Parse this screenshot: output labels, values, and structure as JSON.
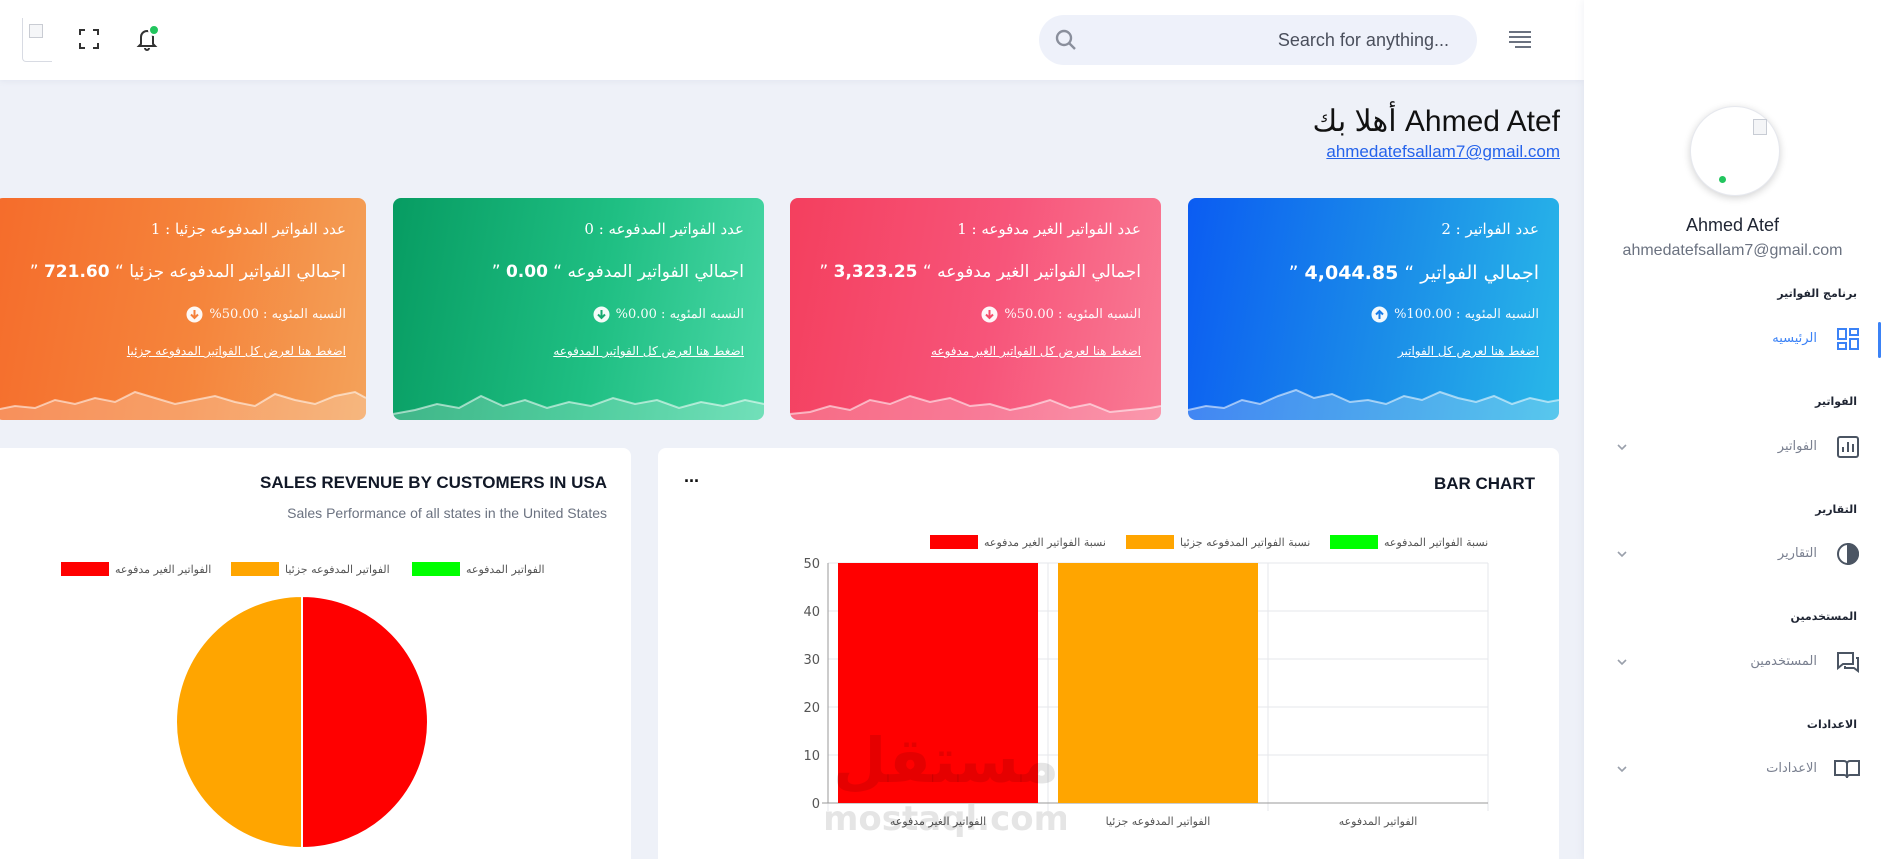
{
  "header": {
    "search_placeholder": "Search for anything..."
  },
  "sidebar": {
    "user_name": "Ahmed Atef",
    "user_email": "ahmedatefsallam7@gmail.com",
    "sections": [
      {
        "title": "برنامج الفواتير",
        "item": "الرئيسيه",
        "icon": "dashboard-icon",
        "active": true
      },
      {
        "title": "الفواتير",
        "item": "الفواتير",
        "icon": "bar-chart-icon",
        "active": false
      },
      {
        "title": "التقارير",
        "item": "التقارير",
        "icon": "pie-chart-icon",
        "active": false
      },
      {
        "title": "المستخدمين",
        "item": "المستخدمين",
        "icon": "chat-icon",
        "active": false
      },
      {
        "title": "الاعدادات",
        "item": "الاعدادات",
        "icon": "book-icon",
        "active": false
      }
    ]
  },
  "welcome": {
    "greeting": "أهلا بك Ahmed Atef",
    "email": "ahmedatefsallam7@gmail.com"
  },
  "cards": [
    {
      "color": "blue",
      "title": "عدد الفواتير : 2",
      "total_label": "اجمالي الفواتير",
      "total_value": "4,044.85",
      "percent": "النسبه المئويه : 100.00%",
      "trend": "up",
      "link": "اضغط هنا لعرض كل الفواتير"
    },
    {
      "color": "red",
      "title": "عدد الفواتير الغير مدفوعه : 1",
      "total_label": "اجمالي الفواتير الغير مدفوعه",
      "total_value": "3,323.25",
      "percent": "النسبه المئويه : 50.00%",
      "trend": "down",
      "link": "اضغط هنا لعرض كل الفواتير الغير مدفوعه"
    },
    {
      "color": "green",
      "title": "عدد الفواتير المدفوعه : 0",
      "total_label": "اجمالي الفواتير المدفوعه",
      "total_value": "0.00",
      "percent": "النسبه المئويه : 0.00%",
      "trend": "down",
      "link": "اضغط هنا لعرض كل الفواتير المدفوعه"
    },
    {
      "color": "orange",
      "title": "عدد الفواتير المدفوعه جزئيا : 1",
      "total_label": "اجمالي الفواتير المدفوعه جزئيا",
      "total_value": "721.60",
      "percent": "النسبه المئويه : 50.00%",
      "trend": "down",
      "link": "اضغط هنا لعرض كل الفواتير المدفوعه جزئيا"
    }
  ],
  "pie_panel": {
    "title": "SALES REVENUE BY CUSTOMERS IN USA",
    "subtitle": "Sales Performance of all states in the United States"
  },
  "bar_panel": {
    "title": "BAR CHART",
    "menu": "..."
  },
  "colors": {
    "unpaid": "#ff0000",
    "partial": "#ffa500",
    "paid": "#00ff00"
  },
  "watermark": {
    "arabic": "مستقل",
    "latin": "mostaql.com"
  },
  "chart_data": [
    {
      "type": "pie",
      "labels": [
        "الفواتير الغير مدفوعه",
        "الفواتير المدفوعه جزئيا",
        "الفواتير المدفوعه"
      ],
      "values": [
        50,
        50,
        0
      ],
      "colors": [
        "#ff0000",
        "#ffa500",
        "#00ff00"
      ],
      "legend_position": "top"
    },
    {
      "type": "bar",
      "categories": [
        "الفواتير الغير مدفوعه",
        "الفواتير المدفوعه جزئيا",
        "الفواتير المدفوعه"
      ],
      "series": [
        {
          "name": "نسبة الفواتير الغير مدفوعه",
          "values": [
            50,
            0,
            0
          ],
          "color": "#ff0000"
        },
        {
          "name": "نسبة الفواتير المدفوعه جزئيا",
          "values": [
            0,
            50,
            0
          ],
          "color": "#ffa500"
        },
        {
          "name": "نسبة الفواتير المدفوعه",
          "values": [
            0,
            0,
            0
          ],
          "color": "#00ff00"
        }
      ],
      "ylim": [
        0,
        50
      ],
      "yticks": [
        0,
        10,
        20,
        30,
        40,
        50
      ],
      "grid": true,
      "legend_position": "top"
    }
  ]
}
